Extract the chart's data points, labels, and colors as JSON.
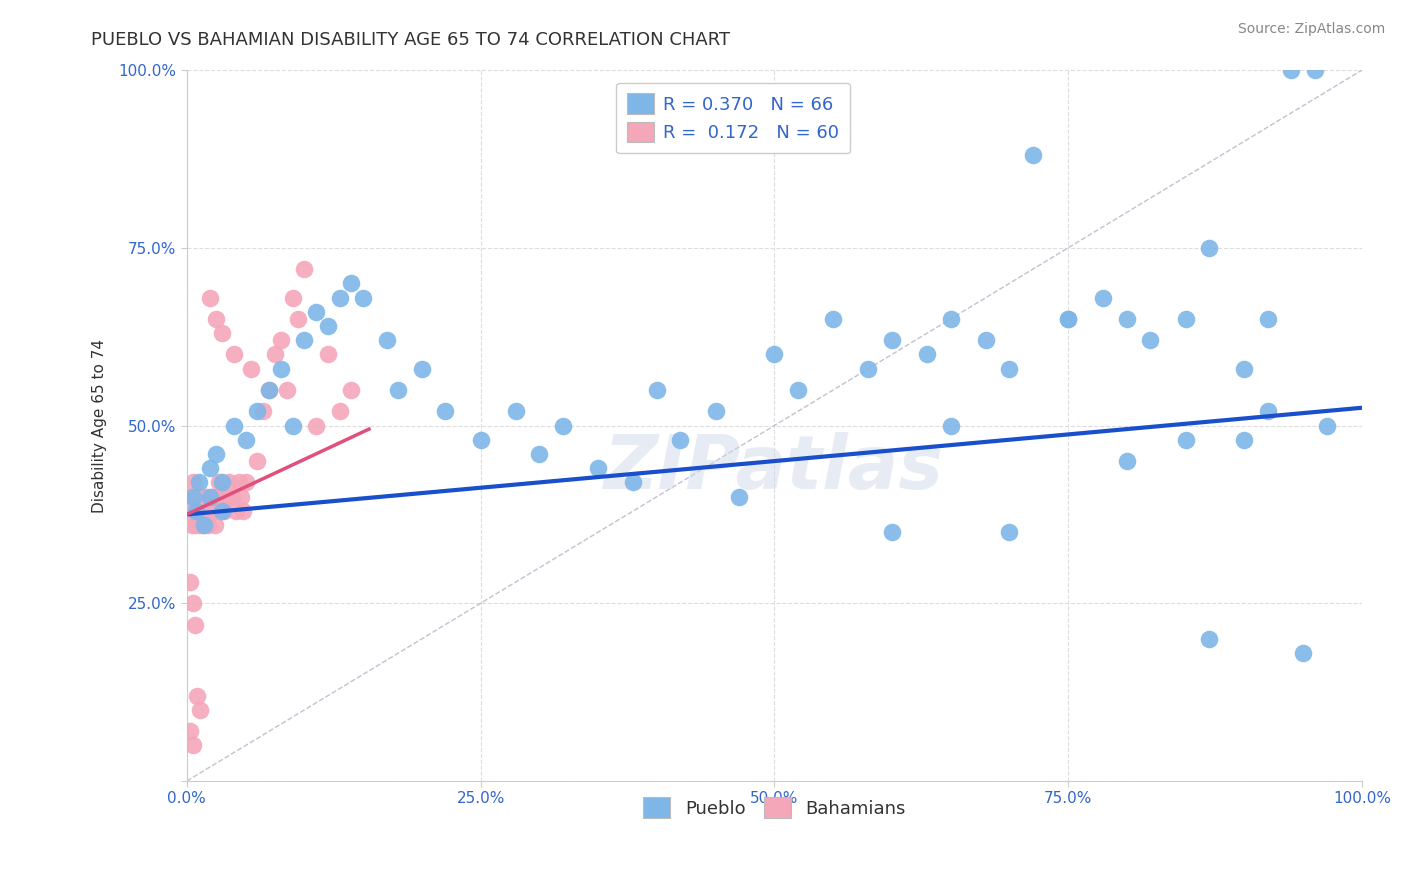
{
  "title": "PUEBLO VS BAHAMIAN DISABILITY AGE 65 TO 74 CORRELATION CHART",
  "source_text": "Source: ZipAtlas.com",
  "ylabel": "Disability Age 65 to 74",
  "xlim": [
    0,
    1
  ],
  "ylim": [
    0,
    1
  ],
  "xticks": [
    0.0,
    0.25,
    0.5,
    0.75,
    1.0
  ],
  "yticks": [
    0.0,
    0.25,
    0.5,
    0.75,
    1.0
  ],
  "xticklabels": [
    "0.0%",
    "25.0%",
    "50.0%",
    "75.0%",
    "100.0%"
  ],
  "yticklabels": [
    "",
    "25.0%",
    "50.0%",
    "75.0%",
    "100.0%"
  ],
  "pueblo_color": "#7EB6E8",
  "bahamian_color": "#F4A7B9",
  "pueblo_line_color": "#1A4FCC",
  "bahamian_line_color": "#E0507A",
  "diagonal_color": "#BBBBCC",
  "pueblo_R": 0.37,
  "pueblo_N": 66,
  "bahamian_R": 0.172,
  "bahamian_N": 60,
  "background_color": "#FFFFFF",
  "grid_color": "#DDDDDD",
  "title_fontsize": 13,
  "axis_label_fontsize": 11,
  "tick_fontsize": 11,
  "legend_fontsize": 13,
  "source_fontsize": 10,
  "pueblo_line_y0": 0.375,
  "pueblo_line_y1": 0.525,
  "bahamian_line_x0": 0.0,
  "bahamian_line_x1": 0.155,
  "bahamian_line_y0": 0.375,
  "bahamian_line_y1": 0.495,
  "pueblo_x": [
    0.005,
    0.008,
    0.01,
    0.015,
    0.02,
    0.02,
    0.025,
    0.03,
    0.03,
    0.04,
    0.05,
    0.06,
    0.07,
    0.08,
    0.09,
    0.1,
    0.11,
    0.12,
    0.13,
    0.14,
    0.15,
    0.17,
    0.18,
    0.2,
    0.22,
    0.25,
    0.28,
    0.3,
    0.32,
    0.35,
    0.38,
    0.4,
    0.42,
    0.45,
    0.47,
    0.5,
    0.52,
    0.55,
    0.58,
    0.6,
    0.63,
    0.65,
    0.68,
    0.7,
    0.72,
    0.75,
    0.78,
    0.8,
    0.82,
    0.85,
    0.87,
    0.9,
    0.92,
    0.94,
    0.96,
    0.97,
    0.6,
    0.65,
    0.7,
    0.75,
    0.8,
    0.85,
    0.87,
    0.9,
    0.92,
    0.95
  ],
  "pueblo_y": [
    0.4,
    0.38,
    0.42,
    0.36,
    0.44,
    0.4,
    0.46,
    0.42,
    0.38,
    0.5,
    0.48,
    0.52,
    0.55,
    0.58,
    0.5,
    0.62,
    0.66,
    0.64,
    0.68,
    0.7,
    0.68,
    0.62,
    0.55,
    0.58,
    0.52,
    0.48,
    0.52,
    0.46,
    0.5,
    0.44,
    0.42,
    0.55,
    0.48,
    0.52,
    0.4,
    0.6,
    0.55,
    0.65,
    0.58,
    0.62,
    0.6,
    0.65,
    0.62,
    0.58,
    0.88,
    0.65,
    0.68,
    0.65,
    0.62,
    0.65,
    0.75,
    0.58,
    0.65,
    1.0,
    1.0,
    0.5,
    0.35,
    0.5,
    0.35,
    0.65,
    0.45,
    0.48,
    0.2,
    0.48,
    0.52,
    0.18
  ],
  "bahamian_x": [
    0.002,
    0.003,
    0.004,
    0.005,
    0.006,
    0.007,
    0.008,
    0.009,
    0.01,
    0.011,
    0.012,
    0.013,
    0.014,
    0.015,
    0.016,
    0.017,
    0.018,
    0.019,
    0.02,
    0.021,
    0.022,
    0.023,
    0.024,
    0.025,
    0.026,
    0.027,
    0.028,
    0.029,
    0.03,
    0.032,
    0.034,
    0.036,
    0.038,
    0.04,
    0.042,
    0.044,
    0.046,
    0.048,
    0.05,
    0.055,
    0.06,
    0.065,
    0.07,
    0.075,
    0.08,
    0.085,
    0.09,
    0.095,
    0.1,
    0.11,
    0.12,
    0.13,
    0.14,
    0.003,
    0.005,
    0.007,
    0.009,
    0.011,
    0.003,
    0.005
  ],
  "bahamian_y": [
    0.4,
    0.38,
    0.36,
    0.42,
    0.4,
    0.38,
    0.36,
    0.38,
    0.4,
    0.36,
    0.38,
    0.4,
    0.36,
    0.38,
    0.4,
    0.38,
    0.36,
    0.38,
    0.68,
    0.4,
    0.38,
    0.4,
    0.36,
    0.65,
    0.38,
    0.42,
    0.4,
    0.38,
    0.63,
    0.38,
    0.4,
    0.42,
    0.4,
    0.6,
    0.38,
    0.42,
    0.4,
    0.38,
    0.42,
    0.58,
    0.45,
    0.52,
    0.55,
    0.6,
    0.62,
    0.55,
    0.68,
    0.65,
    0.72,
    0.5,
    0.6,
    0.52,
    0.55,
    0.28,
    0.25,
    0.22,
    0.12,
    0.1,
    0.07,
    0.05
  ]
}
